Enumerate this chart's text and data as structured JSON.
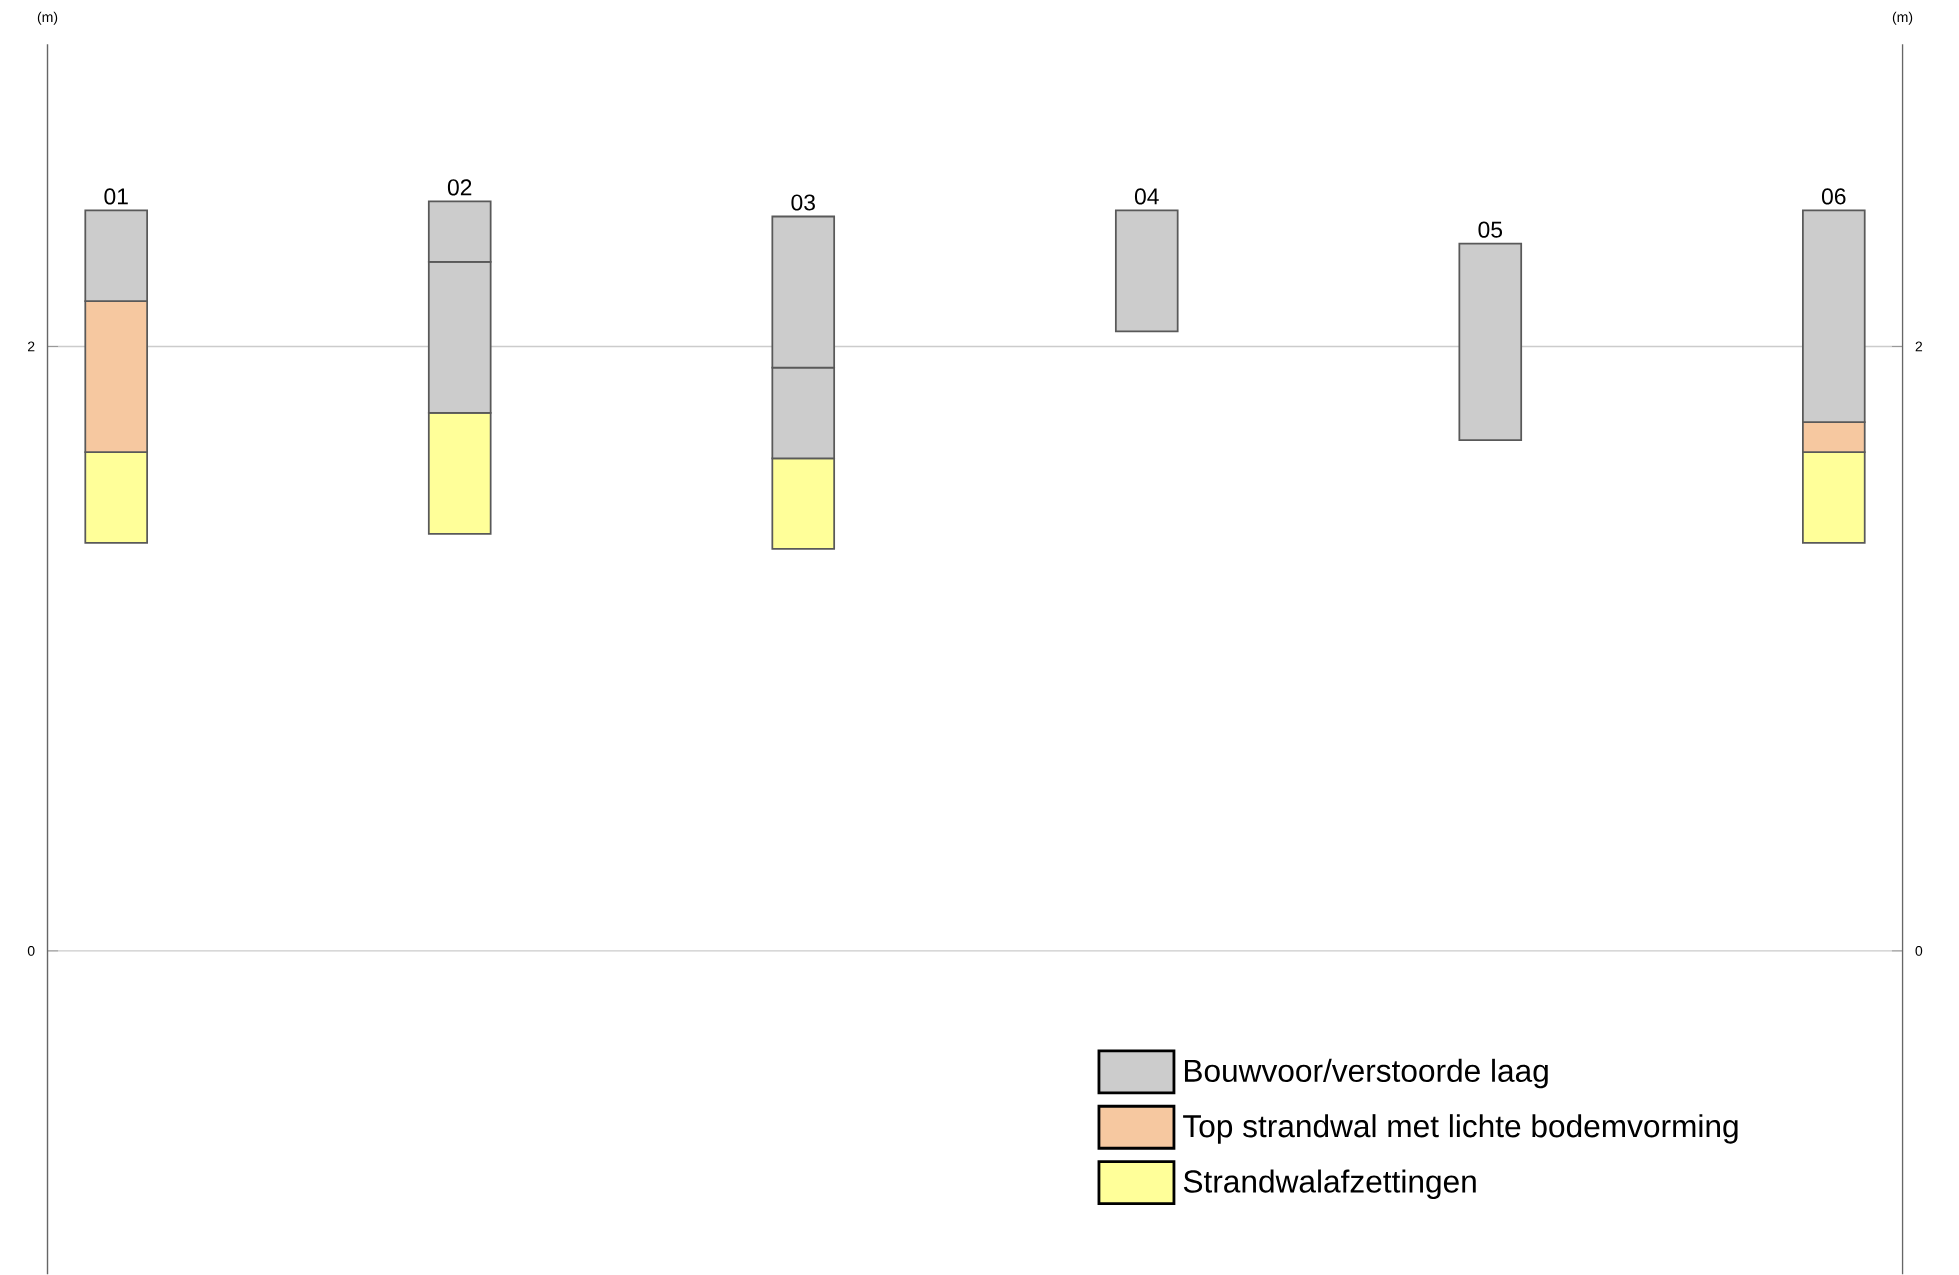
{
  "chart_data": {
    "type": "bar",
    "categories": [
      "01",
      "02",
      "03",
      "04",
      "05",
      "06"
    ],
    "series": [
      {
        "name": "Strandwalafzettingen",
        "color": "#ffff99",
        "base": [
          1.35,
          1.38,
          1.33,
          null,
          null,
          1.35
        ],
        "values": [
          0.3,
          0.4,
          0.3,
          null,
          null,
          0.3
        ]
      },
      {
        "name": "Top strandwal met lichte bodemvorming",
        "color": "#f6c8a0",
        "base": [
          1.65,
          null,
          null,
          null,
          null,
          1.65
        ],
        "values": [
          0.5,
          null,
          null,
          null,
          null,
          0.1
        ]
      },
      {
        "name": "Bouwvoor/verstoorde laag",
        "color": "#cccccc",
        "base": [
          2.15,
          1.78,
          1.63,
          2.05,
          1.69,
          1.75
        ],
        "values": [
          0.3,
          0.5,
          0.3,
          0.4,
          0.65,
          0.7
        ]
      },
      {
        "color": "#cccccc",
        "base": [
          null,
          2.28,
          1.93,
          null,
          null,
          null
        ],
        "values": [
          null,
          0.2,
          0.5,
          null,
          null,
          null
        ]
      }
    ],
    "ylim": [
      -1.07,
      3.0
    ],
    "yticks": [
      0,
      2
    ],
    "y2lim": [
      -1.07,
      3.0
    ],
    "y2ticks": [
      0,
      2
    ],
    "ylabel": "(m)",
    "y2label": "(m)",
    "grid": "y",
    "legend": "bottom right"
  }
}
